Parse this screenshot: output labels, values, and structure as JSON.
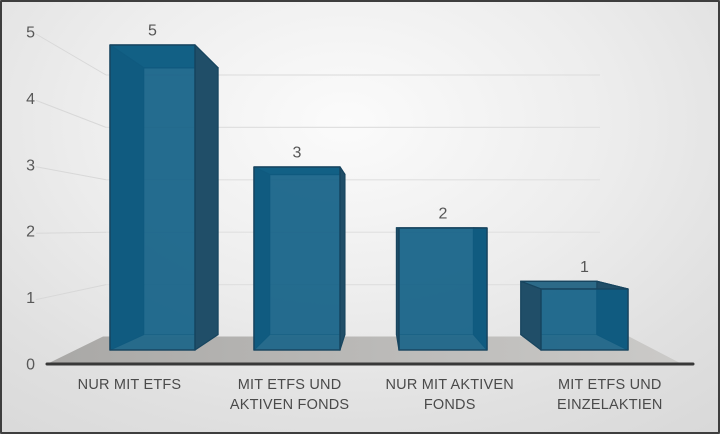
{
  "chart_data": {
    "type": "bar",
    "subtype": "3d-column-perspective",
    "title": "",
    "xlabel": "",
    "ylabel": "",
    "categories": [
      "NUR MIT ETFS",
      "MIT ETFS UND AKTIVEN FONDS",
      "NUR MIT AKTIVEN FONDS",
      "MIT ETFS UND EINZELAKTIEN"
    ],
    "categories_lines": [
      [
        "NUR MIT ETFS"
      ],
      [
        "MIT ETFS UND",
        "AKTIVEN FONDS"
      ],
      [
        "NUR MIT AKTIVEN",
        "FONDS"
      ],
      [
        "MIT ETFS UND",
        "EINZELAKTIEN"
      ]
    ],
    "values": [
      5,
      3,
      2,
      1
    ],
    "data_labels": [
      "5",
      "3",
      "2",
      "1"
    ],
    "yticks": [
      "0",
      "1",
      "2",
      "3",
      "4",
      "5"
    ],
    "ylim": [
      0,
      5
    ],
    "grid": "on",
    "legend": "none",
    "colors": {
      "bar_front_glass": "#0E5E85",
      "bar_front_result": "#2F7394",
      "bar_side_dark": "#204E68",
      "bar_top": "#2C6A88",
      "bar_back_tint": "#2C6A88",
      "bar_edge": "#17455F",
      "floor_left": "#A9A8A6",
      "floor_right": "#CBCAC8",
      "axis_line": "#383838",
      "gridline_back": "#E0E0E0",
      "gridline_side": "#D8D8D8",
      "tick_label": "#585858",
      "data_label": "#555555",
      "category_label": "#4A4A4A",
      "bottom_seen_through": "#B5B4B2"
    }
  }
}
